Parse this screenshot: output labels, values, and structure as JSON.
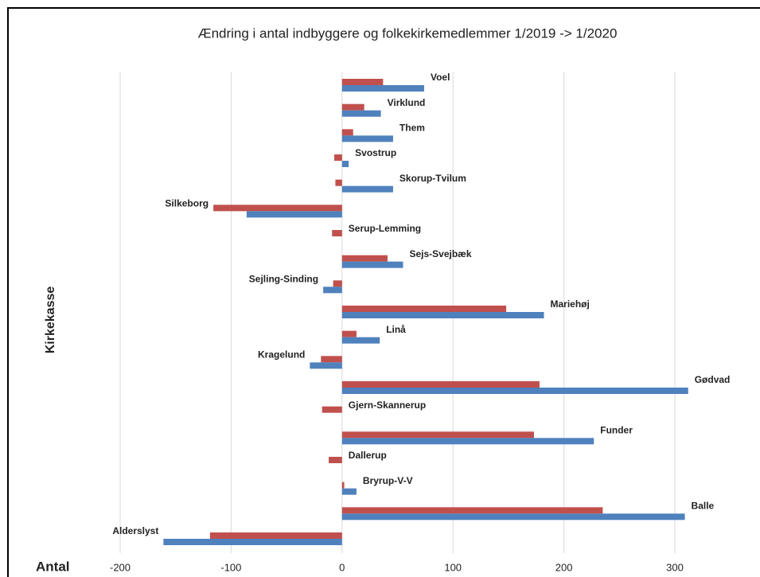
{
  "chart_data": {
    "type": "hbar",
    "title": "Ændring i antal indbyggere og folkekirkemedlemmer 1/2019 -> 1/2020",
    "y_label": "Kirkekasse",
    "x_label": "Antal",
    "categories": [
      "Voel",
      "Virklund",
      "Them",
      "Svostrup",
      "Skorup-Tvilum",
      "Silkeborg",
      "Serup-Lemming",
      "Sejs-Svejbæk",
      "Sejling-Sinding",
      "Mariehøj",
      "Linå",
      "Kragelund",
      "Gødvad",
      "Gjern-Skannerup",
      "Funder",
      "Dallerup",
      "Bryrup-V-V",
      "Balle",
      "Alderslyst"
    ],
    "series": [
      {
        "color": "#c0504d",
        "values": [
          37,
          20,
          10,
          -7,
          -6,
          -116,
          -9,
          41,
          -8,
          148,
          13,
          -19,
          178,
          -18,
          173,
          -12,
          2,
          235,
          -119
        ]
      },
      {
        "color": "#4f81bd",
        "values": [
          74,
          35,
          46,
          6,
          46,
          -86,
          0,
          55,
          -17,
          182,
          34,
          -29,
          312,
          0,
          227,
          0,
          13,
          309,
          -161
        ]
      }
    ],
    "xlim": [
      -200,
      300
    ],
    "xticks": [
      -200,
      -100,
      0,
      100,
      200,
      300
    ],
    "grid": true
  }
}
